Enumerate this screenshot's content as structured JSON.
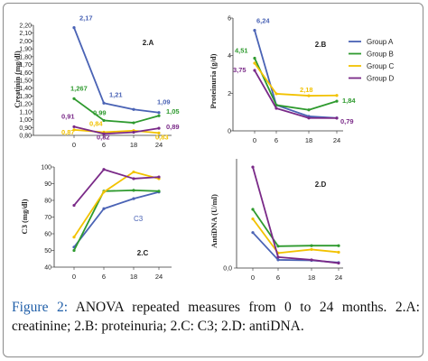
{
  "caption": {
    "label": "Figure 2:",
    "text": "ANOVA repeated measures from 0 to 24 months. 2.A: creatinine; 2.B: proteinuria; 2.C: C3; 2.D: antiDNA."
  },
  "colors": {
    "Group A": "#4a63b5",
    "Group B": "#2e9a2e",
    "Group C": "#f2c200",
    "Group D": "#7a2a88"
  },
  "chart_data": [
    {
      "panel": "2.A",
      "type": "line",
      "ylabel": "Creatinin (mg/dl)",
      "x": [
        0,
        6,
        18,
        24
      ],
      "x_ticks": [
        "0",
        "6",
        "18",
        "24"
      ],
      "y_ticks": [
        "0,80",
        "0,90",
        "1,00",
        "1,10",
        "1,20",
        "1,30",
        "1,40",
        "1,50",
        "1,60",
        "1,70",
        "1,80",
        "1,90",
        "2,00",
        "2,10",
        "2,20"
      ],
      "ylim": [
        0.8,
        2.2
      ],
      "series": [
        {
          "name": "Group A",
          "values": [
            2.17,
            1.21,
            1.13,
            1.09
          ],
          "labels": [
            "2,17",
            "1,21",
            "",
            "1,09"
          ]
        },
        {
          "name": "Group B",
          "values": [
            1.267,
            0.99,
            0.96,
            1.05
          ],
          "labels": [
            "1,267",
            "0,99",
            "",
            "1,05"
          ]
        },
        {
          "name": "Group C",
          "values": [
            0.87,
            0.84,
            0.86,
            0.83
          ],
          "labels": [
            "0,87",
            "0,84",
            "",
            "0,83"
          ]
        },
        {
          "name": "Group D",
          "values": [
            0.91,
            0.82,
            0.84,
            0.89
          ],
          "labels": [
            "0,91",
            "0,82",
            "",
            "0,89"
          ]
        }
      ]
    },
    {
      "panel": "2.B",
      "type": "line",
      "ylabel": "Proteinuria (g/d)",
      "x": [
        0,
        6,
        18,
        24
      ],
      "x_ticks": [
        "0",
        "6",
        "18",
        "24"
      ],
      "y_ticks": [
        "0",
        "2",
        "4",
        "6"
      ],
      "ylim": [
        0,
        7
      ],
      "legend": [
        "Group A",
        "Group B",
        "Group C",
        "Group D"
      ],
      "legend_position": "top-right",
      "series": [
        {
          "name": "Group A",
          "values": [
            6.24,
            1.6,
            0.9,
            0.8
          ],
          "labels": [
            "6,24",
            "",
            "",
            ""
          ]
        },
        {
          "name": "Group B",
          "values": [
            4.51,
            1.6,
            1.3,
            1.84
          ],
          "labels": [
            "4,51",
            "",
            "",
            "1,84"
          ]
        },
        {
          "name": "Group C",
          "values": [
            4.2,
            2.3,
            2.18,
            2.2
          ],
          "labels": [
            "",
            "",
            "2,18",
            ""
          ]
        },
        {
          "name": "Group D",
          "values": [
            3.75,
            1.4,
            0.8,
            0.79
          ],
          "labels": [
            "3,75",
            "",
            "",
            "0,79"
          ]
        }
      ]
    },
    {
      "panel": "2.C",
      "type": "line",
      "ylabel": "C3 (mg/dl)",
      "annotation": "C3",
      "x": [
        0,
        6,
        18,
        24
      ],
      "x_ticks": [
        "0",
        "6",
        "18",
        "24"
      ],
      "y_ticks": [
        "40",
        "50",
        "60",
        "70",
        "80",
        "90",
        "100"
      ],
      "ylim": [
        40,
        100
      ],
      "series": [
        {
          "name": "Group A",
          "values": [
            52,
            75,
            81,
            85
          ]
        },
        {
          "name": "Group B",
          "values": [
            50,
            85.5,
            86,
            85.5
          ]
        },
        {
          "name": "Group C",
          "values": [
            58,
            85,
            97,
            93
          ]
        },
        {
          "name": "Group D",
          "values": [
            77,
            98.5,
            93,
            94
          ]
        }
      ]
    },
    {
      "panel": "2.D",
      "type": "line",
      "ylabel": "AntiDNA (U/ml)",
      "x": [
        0,
        6,
        18,
        24
      ],
      "x_ticks": [
        "0",
        "6",
        "18",
        "24"
      ],
      "y_ticks": [
        "0,0"
      ],
      "ylim": [
        0,
        400
      ],
      "series": [
        {
          "name": "Group A",
          "values": [
            130,
            30,
            28,
            20
          ]
        },
        {
          "name": "Group B",
          "values": [
            215,
            80,
            82,
            82
          ]
        },
        {
          "name": "Group C",
          "values": [
            180,
            55,
            68,
            58
          ]
        },
        {
          "name": "Group D",
          "values": [
            370,
            40,
            30,
            18
          ]
        }
      ]
    }
  ]
}
